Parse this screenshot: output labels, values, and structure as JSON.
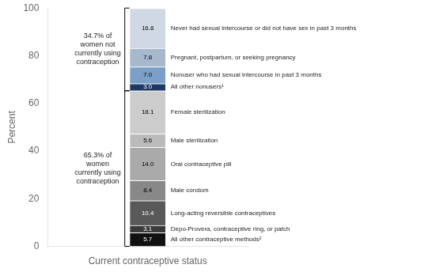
{
  "chart_data": {
    "type": "bar",
    "stacked": true,
    "xlabel": "Current contraceptive status",
    "ylabel": "Percent",
    "categories": [
      null
    ],
    "series": [
      {
        "name": "All other contraceptive methods²",
        "color": "#111111",
        "values": [
          5.7
        ]
      },
      {
        "name": "Depo-Provera, contraceptive ring, or patch",
        "color": "#3a3a3a",
        "values": [
          3.1
        ]
      },
      {
        "name": "Long-acting reversible contraceptives",
        "color": "#595959",
        "values": [
          10.4
        ]
      },
      {
        "name": "Male condom",
        "color": "#888888",
        "values": [
          8.4
        ]
      },
      {
        "name": "Oral contraceptive pill",
        "color": "#aaaaaa",
        "values": [
          14.0
        ],
        "value_labels": [
          "14.0"
        ]
      },
      {
        "name": "Male sterilization",
        "color": "#bbbbbb",
        "values": [
          5.6
        ]
      },
      {
        "name": "Female sterilization",
        "color": "#cccccc",
        "values": [
          18.1
        ]
      },
      {
        "name": "All other nonusers¹",
        "color": "#1f3864",
        "values": [
          3.0
        ],
        "value_labels": [
          "3.0"
        ]
      },
      {
        "name": "Nonuser who had sexual intercourse in past 3 months",
        "color": "#7b9fc7",
        "values": [
          7.0
        ],
        "value_labels": [
          "7.0"
        ]
      },
      {
        "name": "Pregnant, postpartum, or seeking pregnancy",
        "color": "#a8b8cc",
        "values": [
          7.8
        ]
      },
      {
        "name": "Never had sexual intercourse or did not have sex in past 3 months",
        "color": "#d0d8e4",
        "values": [
          16.8
        ]
      }
    ],
    "annotations": [
      {
        "text": "34.7% of\nwomen not\ncurrently using\ncontraception",
        "y_range": [
          65.3,
          100
        ]
      },
      {
        "text": "65.3% of\nwomen\ncurrently using\ncontraception",
        "y_range": [
          0,
          65.3
        ]
      }
    ],
    "ylim": [
      0,
      100
    ],
    "yticks": [
      0,
      20,
      40,
      60,
      80,
      100
    ],
    "data_labels": true,
    "grid": false,
    "tick_labels": "y"
  }
}
